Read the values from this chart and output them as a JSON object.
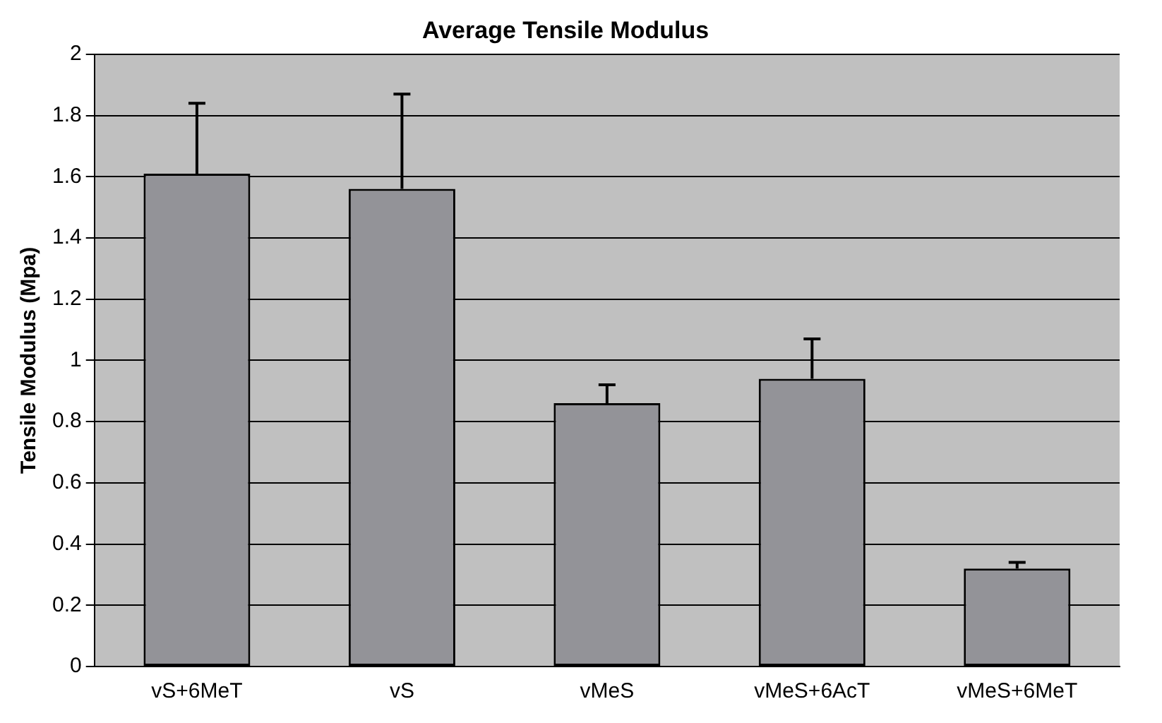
{
  "chart_data": {
    "type": "bar",
    "title": "Average Tensile Modulus",
    "ylabel": "Tensile Modulus (Mpa)",
    "categories": [
      "vS+6MeT",
      "vS",
      "vMeS",
      "vMeS+6AcT",
      "vMeS+6MeT"
    ],
    "values": [
      1.61,
      1.56,
      0.86,
      0.94,
      0.32
    ],
    "errors": [
      [
        1.61,
        1.84
      ],
      [
        1.56,
        1.87
      ],
      [
        0.86,
        0.92
      ],
      [
        0.94,
        1.07
      ],
      [
        0.32,
        0.34
      ]
    ],
    "color": "#939398",
    "ylim": [
      0,
      2
    ],
    "yticks": [
      0,
      0.2,
      0.4,
      0.6,
      0.8,
      1,
      1.2,
      1.4,
      1.6,
      1.8,
      2
    ],
    "grid": "y",
    "legend": false
  }
}
